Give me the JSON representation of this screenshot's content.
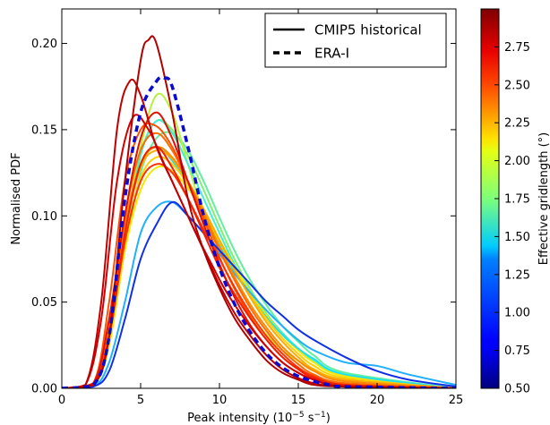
{
  "chart_data": {
    "type": "line",
    "xlabel_main": "Peak intensity (10",
    "xlabel_exp1": "−5",
    "xlabel_mid": " s",
    "xlabel_exp2": "−1",
    "xlabel_end": ")",
    "ylabel": "Normalised PDF",
    "xlim": [
      0,
      25
    ],
    "ylim": [
      0,
      0.22
    ],
    "x_ticks": [
      "0",
      "5",
      "10",
      "15",
      "20",
      "25"
    ],
    "y_ticks": [
      "0.00",
      "0.05",
      "0.10",
      "0.15",
      "0.20"
    ],
    "legend": {
      "placement": "top-right",
      "entries": [
        {
          "label": "CMIP5 historical",
          "style": "solid"
        },
        {
          "label": "ERA-I",
          "style": "dashed"
        }
      ]
    },
    "colorbar": {
      "label": "Effective gridlength (°)",
      "range": [
        0.5,
        3.0
      ],
      "ticks": [
        "0.50",
        "0.75",
        "1.00",
        "1.25",
        "1.50",
        "1.75",
        "2.00",
        "2.25",
        "2.50",
        "2.75"
      ]
    },
    "reference_series": {
      "name": "ERA-I",
      "color": "#0a0ad2",
      "x": [
        0,
        2,
        3,
        4,
        5,
        6,
        6.5,
        7,
        8,
        9,
        10,
        11,
        12,
        13,
        14,
        15,
        16,
        17,
        18,
        25
      ],
      "y": [
        0,
        0.002,
        0.03,
        0.11,
        0.16,
        0.178,
        0.18,
        0.175,
        0.14,
        0.1,
        0.07,
        0.048,
        0.032,
        0.02,
        0.012,
        0.007,
        0.004,
        0.002,
        0.001,
        0
      ]
    },
    "series": [
      {
        "gridlength": 2.9,
        "color": "#b00000",
        "x": [
          0,
          2,
          3,
          4,
          5,
          5.5,
          6,
          7,
          8,
          9,
          10,
          11,
          12,
          13,
          14,
          15,
          16,
          18,
          25
        ],
        "y": [
          0,
          0.002,
          0.03,
          0.12,
          0.19,
          0.202,
          0.2,
          0.16,
          0.11,
          0.08,
          0.058,
          0.04,
          0.027,
          0.016,
          0.009,
          0.005,
          0.002,
          0.001,
          0
        ]
      },
      {
        "gridlength": 2.85,
        "color": "#c00000",
        "x": [
          0,
          1.5,
          2.5,
          3.5,
          4.3,
          5,
          6,
          7,
          8,
          9,
          10,
          11,
          12,
          13,
          14,
          15,
          16,
          18,
          25
        ],
        "y": [
          0,
          0.002,
          0.05,
          0.15,
          0.178,
          0.17,
          0.14,
          0.12,
          0.1,
          0.08,
          0.06,
          0.043,
          0.03,
          0.019,
          0.011,
          0.006,
          0.003,
          0.001,
          0
        ]
      },
      {
        "gridlength": 2.8,
        "color": "#d00000",
        "x": [
          0,
          1.5,
          2.5,
          3.5,
          4.5,
          5.5,
          6.5,
          7.5,
          8.5,
          9.5,
          10.5,
          12,
          13,
          14,
          15,
          16,
          18,
          25
        ],
        "y": [
          0,
          0.002,
          0.04,
          0.12,
          0.157,
          0.15,
          0.13,
          0.11,
          0.09,
          0.072,
          0.055,
          0.035,
          0.024,
          0.015,
          0.009,
          0.005,
          0.001,
          0
        ]
      },
      {
        "gridlength": 2.7,
        "color": "#e01000",
        "x": [
          0,
          2,
          3,
          4,
          5,
          6,
          7,
          8,
          9,
          10,
          11,
          12,
          13,
          14,
          15,
          16,
          18,
          25
        ],
        "y": [
          0,
          0.003,
          0.04,
          0.1,
          0.145,
          0.16,
          0.145,
          0.12,
          0.095,
          0.072,
          0.052,
          0.036,
          0.024,
          0.015,
          0.009,
          0.005,
          0.001,
          0
        ]
      },
      {
        "gridlength": 2.65,
        "color": "#f02000",
        "x": [
          0,
          2,
          3,
          4,
          5,
          6,
          7,
          8,
          9,
          10,
          11,
          12,
          13,
          14,
          15,
          16,
          18,
          25
        ],
        "y": [
          0,
          0.002,
          0.03,
          0.09,
          0.13,
          0.14,
          0.128,
          0.11,
          0.09,
          0.07,
          0.054,
          0.04,
          0.028,
          0.018,
          0.011,
          0.006,
          0.002,
          0
        ]
      },
      {
        "gridlength": 2.6,
        "color": "#ff3000",
        "x": [
          0,
          2,
          3,
          4,
          5,
          6,
          7,
          8,
          9,
          10,
          11,
          12,
          13,
          14,
          15,
          16,
          18,
          25
        ],
        "y": [
          0,
          0.002,
          0.03,
          0.085,
          0.12,
          0.13,
          0.125,
          0.11,
          0.092,
          0.075,
          0.058,
          0.043,
          0.03,
          0.02,
          0.012,
          0.007,
          0.002,
          0
        ]
      },
      {
        "gridlength": 2.5,
        "color": "#ff5000",
        "x": [
          0,
          2,
          3,
          4,
          5,
          6,
          7,
          8,
          9,
          10,
          11,
          12,
          13,
          14,
          15,
          16,
          18,
          25
        ],
        "y": [
          0,
          0.003,
          0.05,
          0.12,
          0.15,
          0.152,
          0.14,
          0.12,
          0.098,
          0.076,
          0.057,
          0.041,
          0.028,
          0.018,
          0.011,
          0.006,
          0.002,
          0
        ]
      },
      {
        "gridlength": 2.45,
        "color": "#ff6a00",
        "x": [
          0,
          2,
          3,
          4,
          5,
          6,
          7,
          8,
          9,
          10,
          11,
          12,
          13,
          14,
          15,
          16,
          18,
          25
        ],
        "y": [
          0,
          0.002,
          0.04,
          0.1,
          0.138,
          0.148,
          0.138,
          0.12,
          0.1,
          0.08,
          0.062,
          0.046,
          0.033,
          0.022,
          0.014,
          0.008,
          0.003,
          0
        ]
      },
      {
        "gridlength": 2.35,
        "color": "#ff8a00",
        "x": [
          0,
          2,
          3,
          4,
          5,
          6,
          7,
          8,
          9,
          10,
          11,
          12,
          13,
          14,
          15,
          16,
          18,
          25
        ],
        "y": [
          0,
          0.002,
          0.035,
          0.095,
          0.13,
          0.14,
          0.134,
          0.12,
          0.102,
          0.082,
          0.064,
          0.048,
          0.035,
          0.024,
          0.016,
          0.01,
          0.004,
          0
        ]
      },
      {
        "gridlength": 2.25,
        "color": "#ffaa00",
        "x": [
          0,
          2,
          3,
          4,
          5,
          6,
          7,
          8,
          9,
          10,
          11,
          12,
          13,
          14,
          15,
          16,
          18,
          25
        ],
        "y": [
          0,
          0.002,
          0.03,
          0.09,
          0.128,
          0.138,
          0.133,
          0.12,
          0.104,
          0.086,
          0.068,
          0.052,
          0.038,
          0.027,
          0.018,
          0.011,
          0.005,
          0
        ]
      },
      {
        "gridlength": 2.15,
        "color": "#ffd000",
        "x": [
          0,
          2,
          3,
          4,
          5,
          6,
          7,
          8,
          9,
          10,
          11,
          12,
          13,
          14,
          15,
          16,
          18,
          25
        ],
        "y": [
          0,
          0.002,
          0.03,
          0.085,
          0.122,
          0.134,
          0.13,
          0.118,
          0.102,
          0.085,
          0.068,
          0.053,
          0.04,
          0.029,
          0.02,
          0.013,
          0.006,
          0
        ]
      },
      {
        "gridlength": 2.05,
        "color": "#f5e800",
        "x": [
          0,
          2,
          3,
          4,
          5,
          6,
          7,
          8,
          9,
          10,
          11,
          12,
          13,
          14,
          15,
          16,
          18,
          25
        ],
        "y": [
          0,
          0.002,
          0.025,
          0.08,
          0.115,
          0.128,
          0.126,
          0.116,
          0.102,
          0.086,
          0.07,
          0.055,
          0.042,
          0.031,
          0.022,
          0.015,
          0.007,
          0
        ]
      },
      {
        "gridlength": 1.9,
        "color": "#b8f040",
        "x": [
          0,
          2,
          3,
          4,
          5,
          6,
          7,
          8,
          9,
          10,
          11,
          12,
          13,
          14,
          15,
          16,
          18,
          25
        ],
        "y": [
          0,
          0.002,
          0.03,
          0.09,
          0.14,
          0.17,
          0.16,
          0.13,
          0.1,
          0.076,
          0.057,
          0.042,
          0.031,
          0.022,
          0.016,
          0.011,
          0.005,
          0
        ]
      },
      {
        "gridlength": 1.8,
        "color": "#80f070",
        "x": [
          0,
          2,
          3,
          4,
          5,
          6,
          7,
          8,
          9,
          10,
          11,
          12,
          13,
          14,
          15,
          16,
          18,
          25
        ],
        "y": [
          0,
          0.002,
          0.028,
          0.088,
          0.136,
          0.155,
          0.15,
          0.135,
          0.115,
          0.094,
          0.074,
          0.057,
          0.043,
          0.032,
          0.023,
          0.016,
          0.007,
          0
        ]
      },
      {
        "gridlength": 1.7,
        "color": "#60f0a0",
        "x": [
          0,
          2,
          3,
          4,
          5,
          6,
          7,
          8,
          9,
          10,
          11,
          12,
          13,
          14,
          15,
          16,
          18,
          25
        ],
        "y": [
          0,
          0.002,
          0.025,
          0.08,
          0.125,
          0.145,
          0.148,
          0.138,
          0.12,
          0.099,
          0.079,
          0.062,
          0.048,
          0.036,
          0.027,
          0.019,
          0.009,
          0
        ]
      },
      {
        "gridlength": 1.55,
        "color": "#40f0d0",
        "x": [
          0,
          2,
          3,
          4,
          5,
          6,
          7,
          8,
          9,
          10,
          11,
          12,
          13,
          14,
          15,
          16,
          18,
          25
        ],
        "y": [
          0,
          0.002,
          0.025,
          0.085,
          0.135,
          0.155,
          0.148,
          0.13,
          0.11,
          0.09,
          0.071,
          0.055,
          0.042,
          0.032,
          0.023,
          0.016,
          0.007,
          0
        ]
      },
      {
        "gridlength": 1.45,
        "color": "#20e0f0",
        "x": [
          0,
          2,
          3,
          4,
          5,
          6,
          7,
          8,
          9,
          10,
          11,
          12,
          13,
          14,
          15,
          16,
          18,
          25
        ],
        "y": [
          0,
          0.002,
          0.03,
          0.09,
          0.13,
          0.14,
          0.132,
          0.118,
          0.1,
          0.083,
          0.067,
          0.053,
          0.041,
          0.031,
          0.023,
          0.017,
          0.008,
          0
        ]
      },
      {
        "gridlength": 1.3,
        "color": "#20b0ff",
        "x": [
          0,
          2,
          3,
          4,
          5,
          6,
          7,
          8,
          9,
          10,
          11,
          12,
          13,
          14,
          15,
          16,
          18,
          20,
          22,
          25
        ],
        "y": [
          0,
          0.001,
          0.015,
          0.05,
          0.09,
          0.105,
          0.108,
          0.1,
          0.09,
          0.078,
          0.066,
          0.055,
          0.045,
          0.036,
          0.028,
          0.022,
          0.015,
          0.013,
          0.008,
          0.002
        ]
      },
      {
        "gridlength": 1.0,
        "color": "#1030e8",
        "x": [
          0,
          2,
          3,
          4,
          5,
          6,
          7,
          8,
          9,
          10,
          11,
          12,
          13,
          14,
          15,
          16,
          18,
          20,
          22,
          25
        ],
        "y": [
          0,
          0.001,
          0.01,
          0.04,
          0.075,
          0.095,
          0.108,
          0.1,
          0.09,
          0.08,
          0.07,
          0.06,
          0.05,
          0.042,
          0.034,
          0.028,
          0.018,
          0.01,
          0.005,
          0.001
        ]
      }
    ]
  }
}
